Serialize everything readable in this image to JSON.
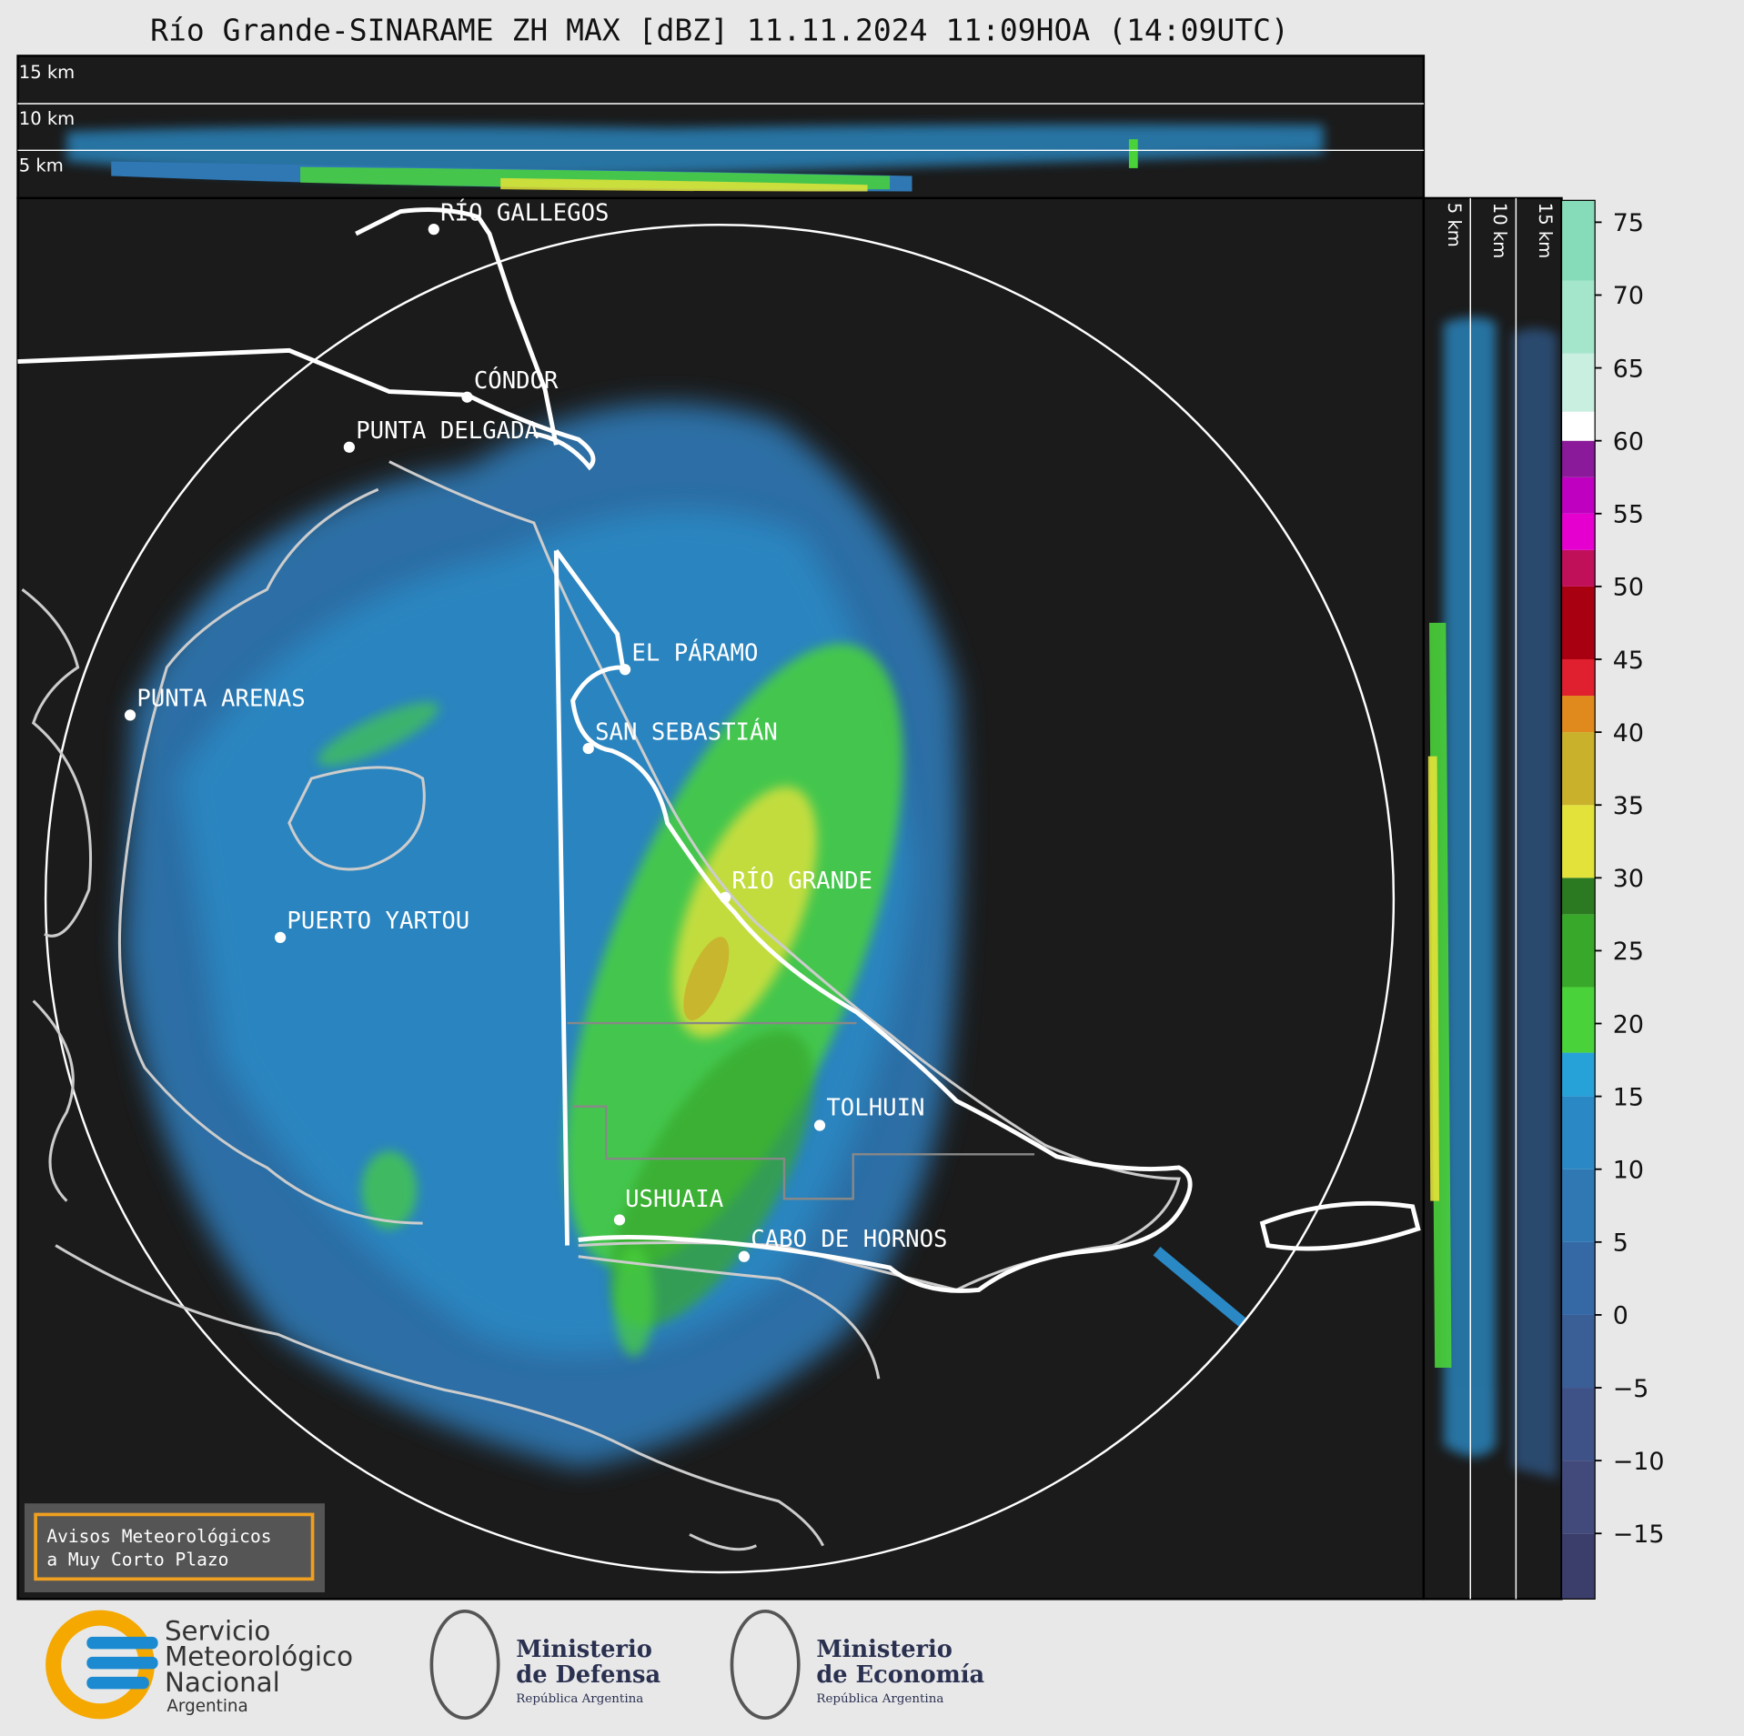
{
  "header": {
    "title": "Río Grande-SINARAME ZH MAX [dBZ] 11.11.2024 11:09HOA (14:09UTC)"
  },
  "profile": {
    "height_labels": [
      "15 km",
      "10 km",
      "5 km"
    ]
  },
  "map": {
    "places": [
      "RÍO GALLEGOS",
      "CÓNDOR",
      "PUNTA DELGADA",
      "EL PÁRAMO",
      "PUNTA ARENAS",
      "SAN SEBASTIÁN",
      "RÍO GRANDE",
      "PUERTO YARTOU",
      "TOLHUIN",
      "USHUAIA",
      "CABO DE HORNOS"
    ]
  },
  "colorbar": {
    "lim": [
      -19.5,
      76.5
    ],
    "ticks": [
      {
        "value": -15,
        "label": "−15"
      },
      {
        "value": -10,
        "label": "−10"
      },
      {
        "value": -5,
        "label": "−5"
      },
      0,
      5,
      10,
      15,
      20,
      25,
      30,
      35,
      40,
      45,
      50,
      55,
      60,
      65,
      70,
      75
    ],
    "bands": [
      {
        "from": -19.5,
        "to": -15,
        "color": "#3b3d6b"
      },
      {
        "from": -15,
        "to": -10,
        "color": "#414a7a"
      },
      {
        "from": -10,
        "to": -5,
        "color": "#3e5288"
      },
      {
        "from": -5,
        "to": 0,
        "color": "#3a5e96"
      },
      {
        "from": 0,
        "to": 5,
        "color": "#3569a6"
      },
      {
        "from": 5,
        "to": 10,
        "color": "#2f78b4"
      },
      {
        "from": 10,
        "to": 15,
        "color": "#2a89c4"
      },
      {
        "from": 15,
        "to": 18,
        "color": "#27a2d8"
      },
      {
        "from": 18,
        "to": 22.5,
        "color": "#4ad23a"
      },
      {
        "from": 22.5,
        "to": 27.5,
        "color": "#38a82a"
      },
      {
        "from": 27.5,
        "to": 30,
        "color": "#2b7a22"
      },
      {
        "from": 30,
        "to": 35,
        "color": "#e2e23a"
      },
      {
        "from": 35,
        "to": 40,
        "color": "#c9b12c"
      },
      {
        "from": 40,
        "to": 42.5,
        "color": "#e08a1e"
      },
      {
        "from": 42.5,
        "to": 45,
        "color": "#e0202e"
      },
      {
        "from": 45,
        "to": 50,
        "color": "#a80010"
      },
      {
        "from": 50,
        "to": 52.5,
        "color": "#c0105a"
      },
      {
        "from": 52.5,
        "to": 55,
        "color": "#e600d0"
      },
      {
        "from": 55,
        "to": 57.5,
        "color": "#c000c0"
      },
      {
        "from": 57.5,
        "to": 60,
        "color": "#8a1a9a"
      },
      {
        "from": 60,
        "to": 62,
        "color": "#ffffff"
      },
      {
        "from": 62,
        "to": 66,
        "color": "#c8efe0"
      },
      {
        "from": 66,
        "to": 71,
        "color": "#a4e6cc"
      },
      {
        "from": 71,
        "to": 76.5,
        "color": "#86dcb8"
      }
    ]
  },
  "notice": {
    "lines": [
      "Avisos Meteorológicos",
      "a Muy Corto Plazo"
    ]
  },
  "footer": {
    "logos": [
      {
        "lines": [
          "Servicio",
          "Meteorológico",
          "Nacional",
          "Argentina"
        ]
      },
      {
        "lines": [
          "Ministerio",
          "de Defensa",
          "República Argentina"
        ]
      },
      {
        "lines": [
          "Ministerio",
          "de Economía",
          "República Argentina"
        ]
      }
    ]
  }
}
